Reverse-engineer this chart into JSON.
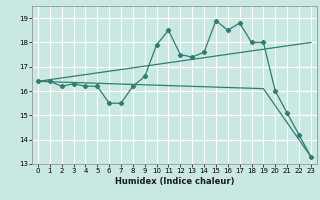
{
  "xlabel": "Humidex (Indice chaleur)",
  "xlim": [
    -0.5,
    23.5
  ],
  "ylim": [
    13,
    19.5
  ],
  "yticks": [
    13,
    14,
    15,
    16,
    17,
    18,
    19
  ],
  "xticks": [
    0,
    1,
    2,
    3,
    4,
    5,
    6,
    7,
    8,
    9,
    10,
    11,
    12,
    13,
    14,
    15,
    16,
    17,
    18,
    19,
    20,
    21,
    22,
    23
  ],
  "bg_color": "#cae8e2",
  "grid_color": "#ffffff",
  "line_color": "#2e7d72",
  "line1_x": [
    0,
    1,
    2,
    3,
    4,
    5,
    6,
    7,
    8,
    9,
    10,
    11,
    12,
    13,
    14,
    15,
    16,
    17,
    18,
    19,
    20,
    21,
    22,
    23
  ],
  "line1_y": [
    16.4,
    16.4,
    16.2,
    16.3,
    16.2,
    16.2,
    15.5,
    15.5,
    16.2,
    16.6,
    17.9,
    18.5,
    17.5,
    17.4,
    17.6,
    18.9,
    18.5,
    18.8,
    18.0,
    18.0,
    16.0,
    15.1,
    14.2,
    13.3
  ],
  "line2_x": [
    0,
    23
  ],
  "line2_y": [
    16.4,
    18.0
  ],
  "line3_x": [
    0,
    19,
    23
  ],
  "line3_y": [
    16.4,
    16.1,
    13.3
  ],
  "marker": "D",
  "marker_size": 2.2,
  "linewidth": 0.9,
  "xlabel_fontsize": 6.0,
  "tick_fontsize": 5.0
}
